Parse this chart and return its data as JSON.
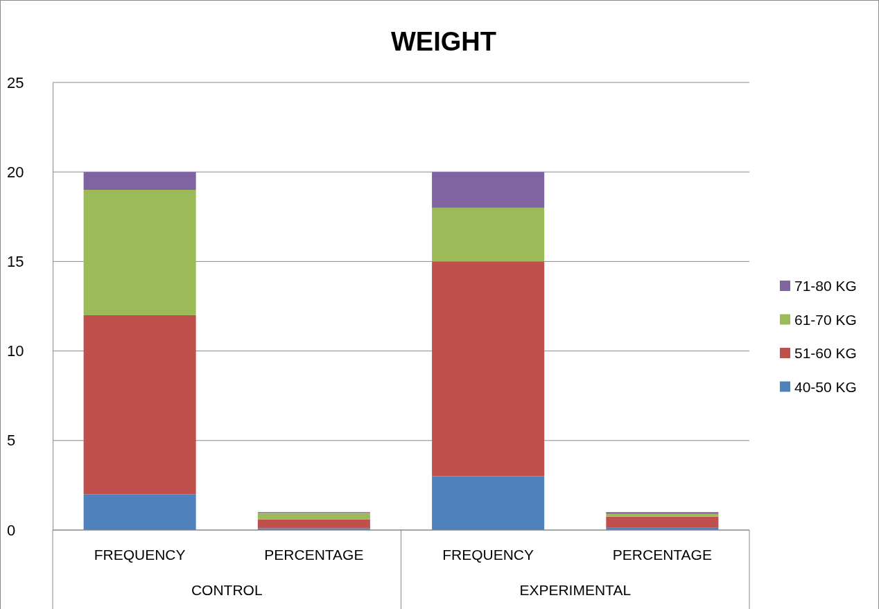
{
  "chart_data": {
    "type": "bar",
    "title": "WEIGHT",
    "stacked": true,
    "categories": [
      "FREQUENCY",
      "PERCENTAGE",
      "FREQUENCY",
      "PERCENTAGE"
    ],
    "annotations": [
      "CONTROL",
      "EXPERIMENTAL"
    ],
    "series": [
      {
        "name": "40-50 KG",
        "color": "#4f81bd",
        "values": [
          2,
          0.1,
          3,
          0.15
        ]
      },
      {
        "name": "51-60 KG",
        "color": "#c0504d",
        "values": [
          10,
          0.5,
          12,
          0.6
        ]
      },
      {
        "name": "61-70 KG",
        "color": "#9bbb59",
        "values": [
          7,
          0.35,
          3,
          0.15
        ]
      },
      {
        "name": "71-80 KG",
        "color": "#8064a2",
        "values": [
          1,
          0.05,
          2,
          0.1
        ]
      }
    ],
    "ylim": [
      0,
      25
    ],
    "yticks": [
      0,
      5,
      10,
      15,
      20,
      25
    ],
    "grid": "y",
    "legend": "right"
  }
}
